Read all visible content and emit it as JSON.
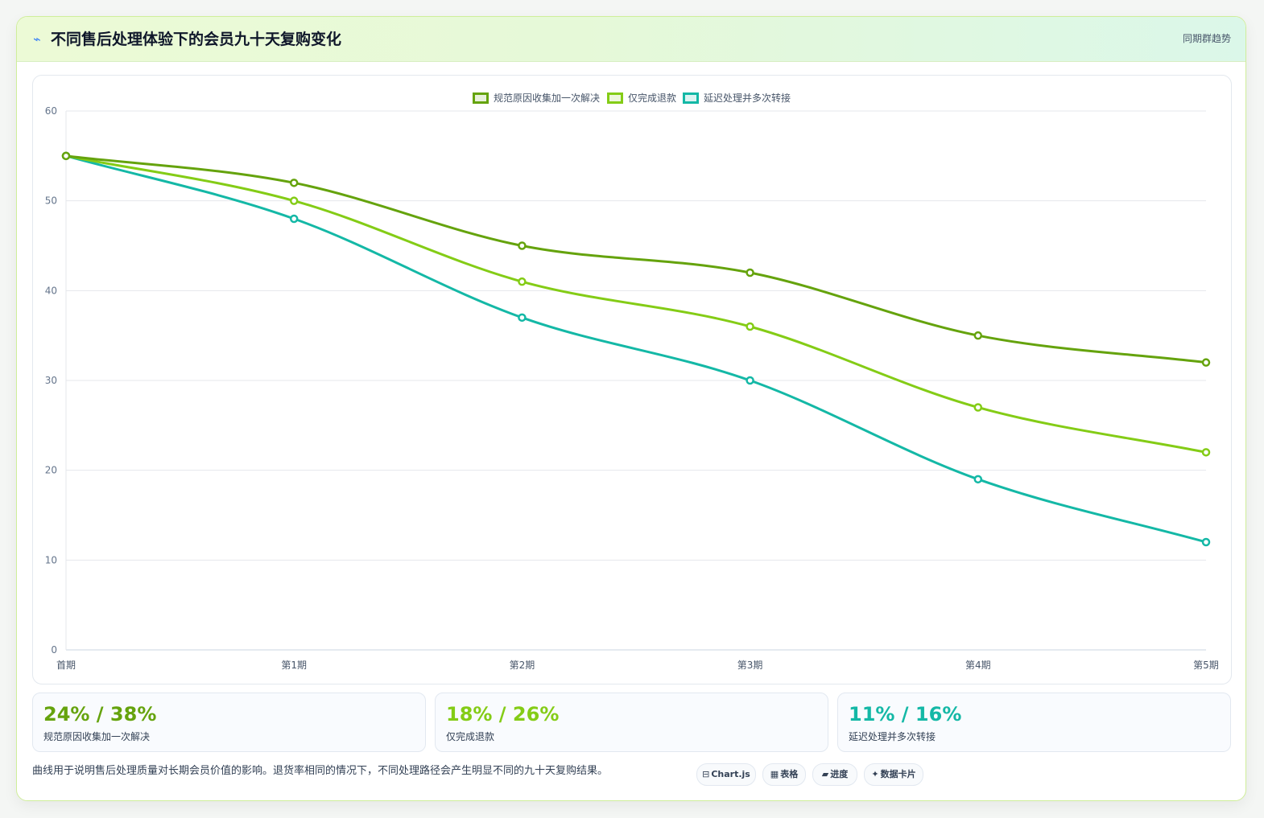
{
  "header": {
    "icon": "bolt-icon",
    "title": "不同售后处理体验下的会员九十天复购变化",
    "tag": "同期群趋势"
  },
  "colors": {
    "series1": "#65a30d",
    "series2": "#84cc16",
    "series3": "#14b8a6",
    "grid": "#e5e7eb",
    "tick": "#64748b"
  },
  "chart_data": {
    "type": "line",
    "title": "",
    "xlabel": "",
    "ylabel": "",
    "categories": [
      "首期",
      "第1期",
      "第2期",
      "第3期",
      "第4期",
      "第5期"
    ],
    "ylim": [
      0,
      60
    ],
    "yticks": [
      "0",
      "10",
      "20",
      "30",
      "40",
      "50",
      "60"
    ],
    "grid": true,
    "legend_position": "top",
    "series": [
      {
        "name": "规范原因收集加一次解决",
        "values": [
          55,
          52,
          45,
          42,
          35,
          32
        ],
        "color": "#65a30d"
      },
      {
        "name": "仅完成退款",
        "values": [
          55,
          50,
          41,
          36,
          27,
          22
        ],
        "color": "#84cc16"
      },
      {
        "name": "延迟处理并多次转接",
        "values": [
          55,
          48,
          37,
          30,
          19,
          12
        ],
        "color": "#14b8a6"
      }
    ]
  },
  "kpis": [
    {
      "value": "24% / 38%",
      "label": "规范原因收集加一次解决",
      "color": "#65a30d"
    },
    {
      "value": "18% / 26%",
      "label": "仅完成退款",
      "color": "#84cc16"
    },
    {
      "value": "11% / 16%",
      "label": "延迟处理并多次转接",
      "color": "#14b8a6"
    }
  ],
  "footer": {
    "note": "曲线用于说明售后处理质量对长期会员价值的影响。退货率相同的情况下，不同处理路径会产生明显不同的九十天复购结果。",
    "chips": [
      {
        "icon": "⊟",
        "icon_name": "chart-icon",
        "label": "Chart.js"
      },
      {
        "icon": "▦",
        "icon_name": "table-icon",
        "label": "表格"
      },
      {
        "icon": "▰",
        "icon_name": "progress-icon",
        "label": "进度"
      },
      {
        "icon": "✦",
        "icon_name": "card-icon",
        "label": "数据卡片"
      }
    ]
  }
}
